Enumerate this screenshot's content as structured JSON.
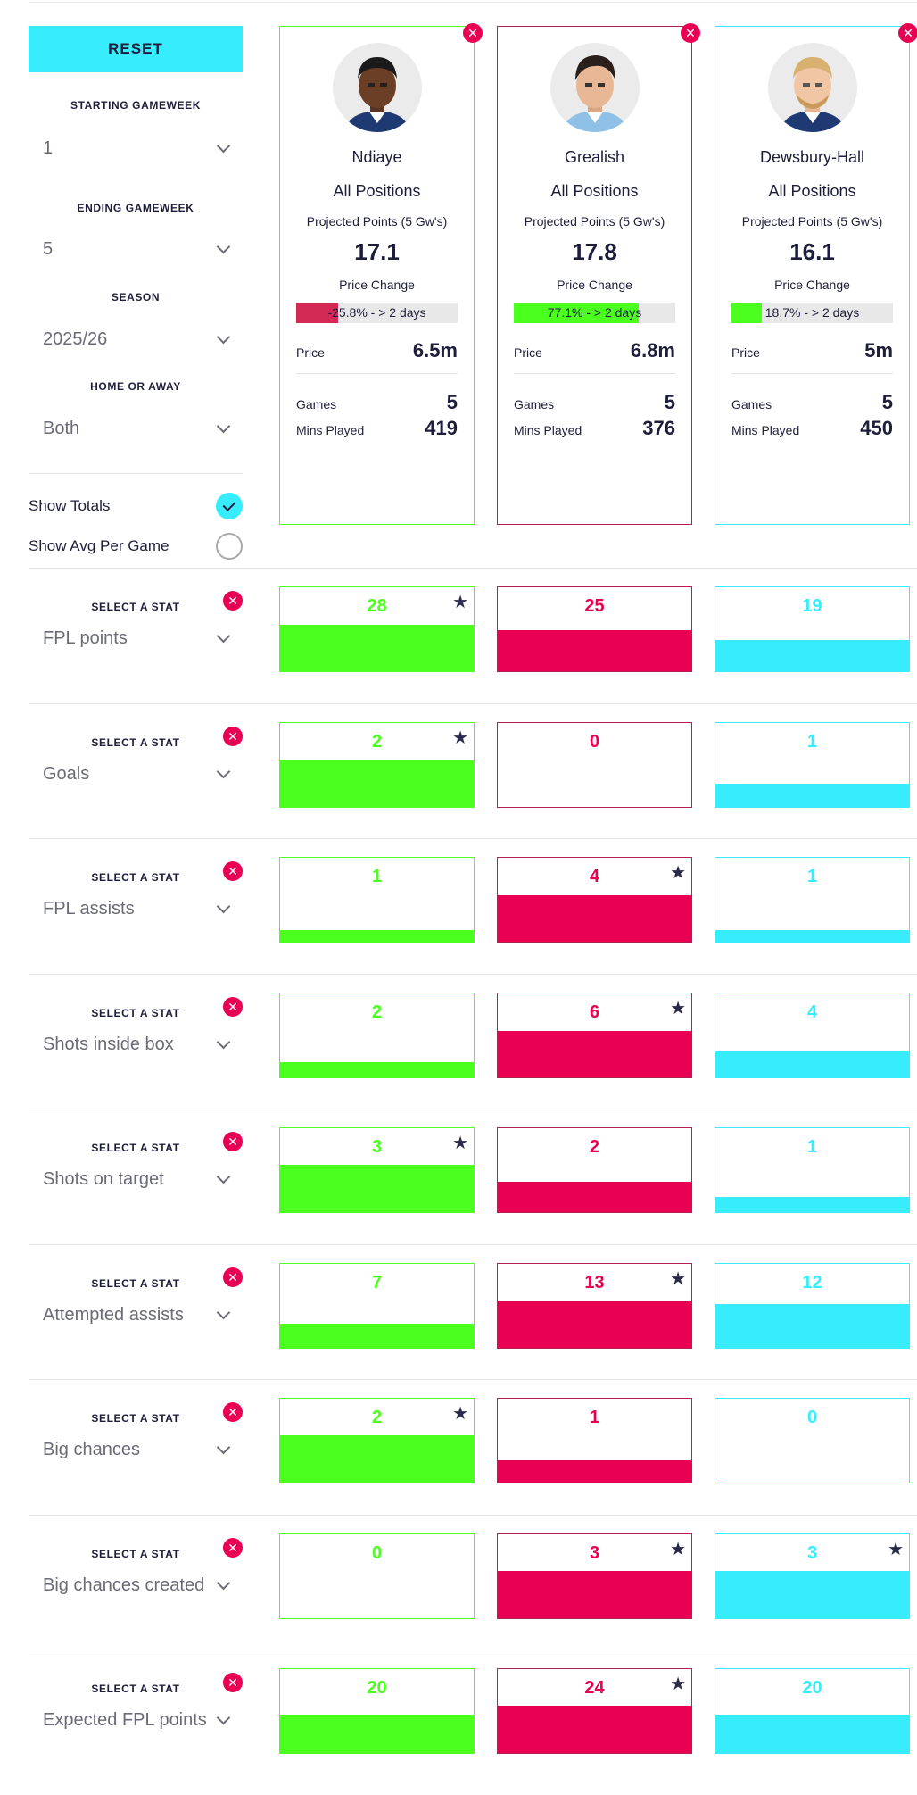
{
  "controls": {
    "reset_label": "RESET",
    "starting_gameweek_label": "STARTING GAMEWEEK",
    "starting_gameweek_value": "1",
    "ending_gameweek_label": "ENDING GAMEWEEK",
    "ending_gameweek_value": "5",
    "season_label": "SEASON",
    "season_value": "2025/26",
    "home_away_label": "HOME OR AWAY",
    "home_away_value": "Both",
    "show_totals_label": "Show Totals",
    "show_totals_checked": true,
    "show_avg_label": "Show Avg Per Game",
    "show_avg_checked": false
  },
  "players": [
    {
      "name": "Ndiaye",
      "position": "All Positions",
      "projected_label": "Projected Points (5 Gw's)",
      "projected": "17.1",
      "price_change_label": "Price Change",
      "price_change_text": "-25.8% - > 2 days",
      "price_change_fraction": 0.258,
      "price_label": "Price",
      "price": "6.5m",
      "games_label": "Games",
      "games": "5",
      "mins_label": "Mins Played",
      "mins": "419",
      "color": "#4bff1e",
      "bar_color": "#d22a55",
      "border": "#4bff1e"
    },
    {
      "name": "Grealish",
      "position": "All Positions",
      "projected_label": "Projected Points (5 Gw's)",
      "projected": "17.8",
      "price_change_label": "Price Change",
      "price_change_text": "77.1% - > 2 days",
      "price_change_fraction": 0.771,
      "price_label": "Price",
      "price": "6.8m",
      "games_label": "Games",
      "games": "5",
      "mins_label": "Mins Played",
      "mins": "376",
      "color": "#e90052",
      "bar_color": "#4bff1e",
      "border": "#b1204f"
    },
    {
      "name": "Dewsbury-Hall",
      "position": "All Positions",
      "projected_label": "Projected Points (5 Gw's)",
      "projected": "16.1",
      "price_change_label": "Price Change",
      "price_change_text": "18.7% - > 2 days",
      "price_change_fraction": 0.187,
      "price_label": "Price",
      "price": "5m",
      "games_label": "Games",
      "games": "5",
      "mins_label": "Mins Played",
      "mins": "450",
      "color": "#37ecfd",
      "bar_color": "#4bff1e",
      "border": "#37ecfd"
    }
  ],
  "stat_select_label": "SELECT A STAT",
  "stats": [
    {
      "name": "FPL points",
      "values": [
        "28",
        "25",
        "19"
      ],
      "fill": [
        0.55,
        0.49,
        0.37
      ],
      "star": [
        true,
        false,
        false
      ]
    },
    {
      "name": "Goals",
      "values": [
        "2",
        "0",
        "1"
      ],
      "fill": [
        0.55,
        0.0,
        0.28
      ],
      "star": [
        true,
        false,
        false
      ]
    },
    {
      "name": "FPL assists",
      "values": [
        "1",
        "4",
        "1"
      ],
      "fill": [
        0.14,
        0.55,
        0.14
      ],
      "star": [
        false,
        true,
        false
      ]
    },
    {
      "name": "Shots inside box",
      "values": [
        "2",
        "6",
        "4"
      ],
      "fill": [
        0.18,
        0.55,
        0.31
      ],
      "star": [
        false,
        true,
        false
      ]
    },
    {
      "name": "Shots on target",
      "values": [
        "3",
        "2",
        "1"
      ],
      "fill": [
        0.56,
        0.36,
        0.18
      ],
      "star": [
        true,
        false,
        false
      ]
    },
    {
      "name": "Attempted assists",
      "values": [
        "7",
        "13",
        "12"
      ],
      "fill": [
        0.29,
        0.56,
        0.52
      ],
      "star": [
        false,
        true,
        false
      ]
    },
    {
      "name": "Big chances",
      "values": [
        "2",
        "1",
        "0"
      ],
      "fill": [
        0.56,
        0.27,
        0.0
      ],
      "star": [
        true,
        false,
        false
      ]
    },
    {
      "name": "Big chances created",
      "values": [
        "0",
        "3",
        "3"
      ],
      "fill": [
        0.0,
        0.56,
        0.56
      ],
      "star": [
        false,
        true,
        true
      ]
    },
    {
      "name": "Expected FPL points",
      "values": [
        "20",
        "24",
        "20"
      ],
      "fill": [
        0.46,
        0.56,
        0.46
      ],
      "star": [
        false,
        true,
        false
      ]
    }
  ]
}
